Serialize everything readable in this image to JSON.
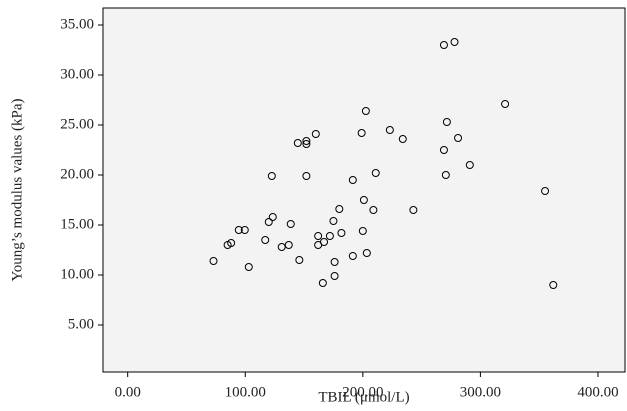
{
  "chart_data": {
    "type": "scatter",
    "x_label": "TBIL (μmol/L)",
    "y_label": "Young’s modulus values (kPa)",
    "x": [
      73,
      85,
      88,
      94.5,
      99.6,
      103,
      117,
      120,
      123.4,
      122.6,
      131,
      137,
      138.7,
      144.7,
      146,
      152,
      152,
      152,
      160,
      162,
      162,
      167,
      166,
      172,
      175,
      176,
      176,
      180,
      181.8,
      191.5,
      191.5,
      199,
      200,
      200.9,
      202.6,
      203.4,
      209,
      211,
      223,
      234,
      243,
      269,
      269,
      270.6,
      271.5,
      278,
      281,
      291,
      321,
      355,
      362
    ],
    "values": [
      11.4,
      13.0,
      13.2,
      14.5,
      14.5,
      10.8,
      13.5,
      15.3,
      15.8,
      19.9,
      12.8,
      13.0,
      15.1,
      23.2,
      11.5,
      23.1,
      23.4,
      19.9,
      24.1,
      13.9,
      13.0,
      13.3,
      9.2,
      13.9,
      15.4,
      11.3,
      9.9,
      16.6,
      14.2,
      11.9,
      19.5,
      24.2,
      14.4,
      17.5,
      26.4,
      12.2,
      16.5,
      20.2,
      24.5,
      23.6,
      16.5,
      33.0,
      22.5,
      20.0,
      25.3,
      33.3,
      23.7,
      21.0,
      27.1,
      18.4,
      9.0
    ],
    "xlim": [
      -21,
      423
    ],
    "ylim": [
      0.3,
      36.7
    ],
    "xticks": [
      {
        "value": 0,
        "label": "0.00"
      },
      {
        "value": 100,
        "label": "100.00"
      },
      {
        "value": 200,
        "label": "200.00"
      },
      {
        "value": 300,
        "label": "300.00"
      },
      {
        "value": 400,
        "label": "400.00"
      }
    ],
    "yticks": [
      {
        "value": 5,
        "label": "5.00"
      },
      {
        "value": 10,
        "label": "10.00"
      },
      {
        "value": 15,
        "label": "15.00"
      },
      {
        "value": 20,
        "label": "20.00"
      },
      {
        "value": 25,
        "label": "25.00"
      },
      {
        "value": 30,
        "label": "30.00"
      },
      {
        "value": 35,
        "label": "35.00"
      }
    ],
    "color": "#000000"
  }
}
